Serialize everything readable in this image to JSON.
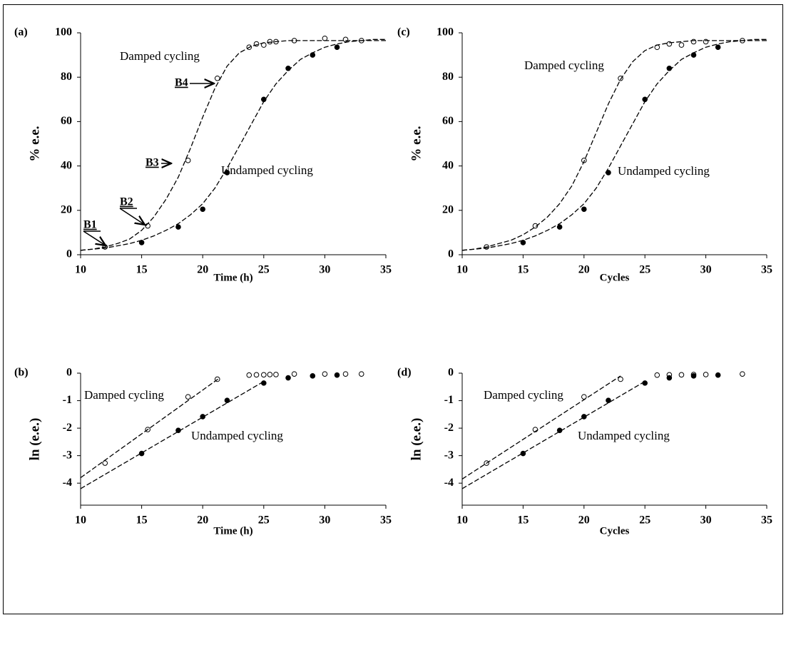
{
  "chart_data": [
    {
      "type": "scatter",
      "panel_label": "(a)",
      "xlabel": "Time (h)",
      "ylabel": "% e.e.",
      "xlim": [
        10,
        35
      ],
      "xticks": [
        10,
        15,
        20,
        25,
        30,
        35
      ],
      "ylim": [
        0,
        100
      ],
      "yticks": [
        0,
        20,
        40,
        60,
        80,
        100
      ],
      "annotations": [
        "B1",
        "B2",
        "B3",
        "B4"
      ],
      "series": [
        {
          "name": "Damped cycling",
          "style": "open",
          "color": "#000000",
          "x": [
            12,
            15.5,
            18.8,
            21.2,
            23.8,
            24.4,
            25,
            25.5,
            26,
            27.5,
            30,
            31.7,
            33
          ],
          "values": [
            3.5,
            13,
            42.5,
            79.5,
            93.5,
            95,
            94.5,
            96,
            96,
            96.5,
            97.5,
            97,
            96.5
          ]
        },
        {
          "name": "Undamped cycling",
          "style": "filled",
          "color": "#000000",
          "x": [
            15,
            18,
            20,
            22,
            25,
            27,
            29,
            31
          ],
          "values": [
            5.5,
            12.5,
            20.5,
            37,
            70,
            84,
            90,
            93.5
          ]
        },
        {
          "style": "dashed",
          "color": "#000000",
          "x": [
            10,
            11,
            12,
            13,
            14,
            15,
            16,
            17,
            18,
            19,
            20,
            21,
            22,
            23,
            24,
            25,
            26,
            27,
            28,
            29,
            30,
            31,
            32,
            33,
            34,
            35
          ],
          "values": [
            2,
            2.5,
            3.5,
            5,
            7,
            11,
            17,
            25,
            35,
            48,
            62,
            75,
            85,
            91,
            94,
            95.5,
            96,
            96.5,
            96.5,
            96.5,
            96.5,
            96.5,
            96.5,
            96.5,
            96.5,
            96.5
          ]
        },
        {
          "style": "dashed",
          "color": "#000000",
          "x": [
            10,
            11,
            12,
            13,
            14,
            15,
            16,
            17,
            18,
            19,
            20,
            21,
            22,
            23,
            24,
            25,
            26,
            27,
            28,
            29,
            30,
            31,
            32,
            33,
            34,
            35
          ],
          "values": [
            2,
            2.5,
            3,
            4,
            5,
            6.5,
            8.5,
            11,
            14,
            18,
            23,
            30,
            39,
            49,
            59,
            69,
            77,
            83,
            88,
            91,
            93.5,
            95,
            96,
            96.5,
            97,
            97
          ]
        }
      ]
    },
    {
      "type": "scatter",
      "panel_label": "(b)",
      "xlabel": "Time (h)",
      "ylabel": "ln (e.e.)",
      "xlim": [
        10,
        35
      ],
      "xticks": [
        10,
        15,
        20,
        25,
        30,
        35
      ],
      "ylim": [
        -4.8,
        0
      ],
      "yticks": [
        0,
        -1,
        -2,
        -3,
        -4
      ],
      "series": [
        {
          "name": "Damped cycling",
          "style": "open",
          "color": "#000000",
          "x": [
            12,
            15.5,
            18.8,
            21.2,
            23.8,
            24.4,
            25,
            25.5,
            26,
            27.5,
            30,
            31.7,
            33
          ],
          "values": [
            -3.27,
            -2.05,
            -0.86,
            -0.22,
            -0.07,
            -0.06,
            -0.06,
            -0.05,
            -0.05,
            -0.03,
            -0.03,
            -0.03,
            -0.03
          ]
        },
        {
          "name": "Undamped cycling",
          "style": "filled",
          "color": "#000000",
          "x": [
            15,
            18,
            20,
            22,
            25,
            27,
            29,
            31
          ],
          "values": [
            -2.92,
            -2.08,
            -1.58,
            -0.99,
            -0.36,
            -0.17,
            -0.1,
            -0.07
          ]
        },
        {
          "style": "dashed",
          "color": "#000000",
          "x": [
            10,
            21.3
          ],
          "values": [
            -3.8,
            -0.2
          ]
        },
        {
          "style": "dashed",
          "color": "#000000",
          "x": [
            10,
            25
          ],
          "values": [
            -4.2,
            -0.3
          ]
        }
      ]
    },
    {
      "type": "scatter",
      "panel_label": "(c)",
      "xlabel": "Cycles",
      "ylabel": "% e.e.",
      "xlim": [
        10,
        35
      ],
      "xticks": [
        10,
        15,
        20,
        25,
        30,
        35
      ],
      "ylim": [
        0,
        100
      ],
      "yticks": [
        0,
        20,
        40,
        60,
        80,
        100
      ],
      "series": [
        {
          "name": "Damped cycling",
          "style": "open",
          "color": "#000000",
          "x": [
            12,
            16,
            20,
            23,
            26,
            27,
            28,
            29,
            30,
            33
          ],
          "values": [
            3.5,
            13,
            42.5,
            79.5,
            93.5,
            95,
            94.5,
            96,
            96,
            96.5
          ]
        },
        {
          "name": "Undamped cycling",
          "style": "filled",
          "color": "#000000",
          "x": [
            15,
            18,
            20,
            22,
            25,
            27,
            29,
            31
          ],
          "values": [
            5.5,
            12.5,
            20.5,
            37,
            70,
            84,
            90,
            93.5
          ]
        },
        {
          "style": "dashed",
          "color": "#000000",
          "x": [
            10,
            11,
            12,
            13,
            14,
            15,
            16,
            17,
            18,
            19,
            20,
            21,
            22,
            23,
            24,
            25,
            26,
            27,
            28,
            29,
            30,
            31,
            32,
            33,
            34,
            35
          ],
          "values": [
            2,
            2.5,
            3.5,
            5,
            6.5,
            9,
            12.5,
            17,
            23,
            31,
            42,
            55,
            68,
            79,
            87,
            92,
            94.5,
            95.5,
            96,
            96.5,
            96.5,
            96.5,
            96.5,
            96.5,
            96.5,
            96.5
          ]
        },
        {
          "style": "dashed",
          "color": "#000000",
          "x": [
            10,
            11,
            12,
            13,
            14,
            15,
            16,
            17,
            18,
            19,
            20,
            21,
            22,
            23,
            24,
            25,
            26,
            27,
            28,
            29,
            30,
            31,
            32,
            33,
            34,
            35
          ],
          "values": [
            2,
            2.5,
            3,
            4,
            5,
            6.5,
            8.5,
            11,
            14,
            18,
            23,
            30,
            39,
            49,
            59,
            69,
            77,
            83,
            88,
            91,
            93.5,
            95,
            96,
            96.5,
            97,
            97
          ]
        }
      ]
    },
    {
      "type": "scatter",
      "panel_label": "(d)",
      "xlabel": "Cycles",
      "ylabel": "ln (e.e.)",
      "xlim": [
        10,
        35
      ],
      "xticks": [
        10,
        15,
        20,
        25,
        30,
        35
      ],
      "ylim": [
        -4.8,
        0
      ],
      "yticks": [
        0,
        -1,
        -2,
        -3,
        -4
      ],
      "series": [
        {
          "name": "Damped cycling",
          "style": "open",
          "color": "#000000",
          "x": [
            12,
            16,
            20,
            23,
            26,
            27,
            28,
            29,
            30,
            33
          ],
          "values": [
            -3.27,
            -2.05,
            -0.86,
            -0.22,
            -0.07,
            -0.06,
            -0.06,
            -0.05,
            -0.05,
            -0.03
          ]
        },
        {
          "name": "Undamped cycling",
          "style": "filled",
          "color": "#000000",
          "x": [
            15,
            18,
            20,
            22,
            25,
            27,
            29,
            31
          ],
          "values": [
            -2.92,
            -2.08,
            -1.58,
            -0.99,
            -0.36,
            -0.17,
            -0.1,
            -0.07
          ]
        },
        {
          "style": "dashed",
          "color": "#000000",
          "x": [
            10,
            23
          ],
          "values": [
            -3.85,
            -0.1
          ]
        },
        {
          "style": "dashed",
          "color": "#000000",
          "x": [
            10,
            25
          ],
          "values": [
            -4.2,
            -0.3
          ]
        }
      ]
    }
  ]
}
